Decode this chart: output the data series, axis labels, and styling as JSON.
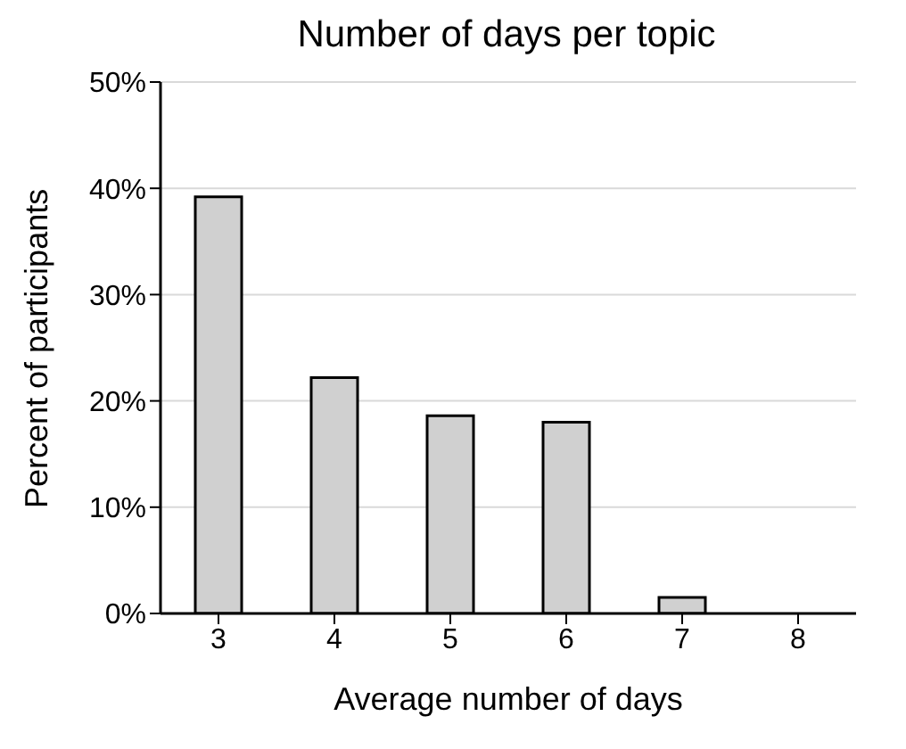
{
  "chart_data": {
    "type": "bar",
    "title": "Number of days per topic",
    "xlabel": "Average number of days",
    "ylabel": "Percent of participants",
    "categories": [
      "3",
      "4",
      "5",
      "6",
      "7",
      "8"
    ],
    "values": [
      39.2,
      22.2,
      18.6,
      18.0,
      1.5,
      0
    ],
    "color": "#d0d0d0",
    "ylim": [
      0,
      50
    ],
    "yticks": [
      {
        "value": 0,
        "label": "0%"
      },
      {
        "value": 10,
        "label": "10%"
      },
      {
        "value": 20,
        "label": "20%"
      },
      {
        "value": 30,
        "label": "30%"
      },
      {
        "value": 40,
        "label": "40%"
      },
      {
        "value": 50,
        "label": "50%"
      }
    ],
    "grid": "y"
  }
}
